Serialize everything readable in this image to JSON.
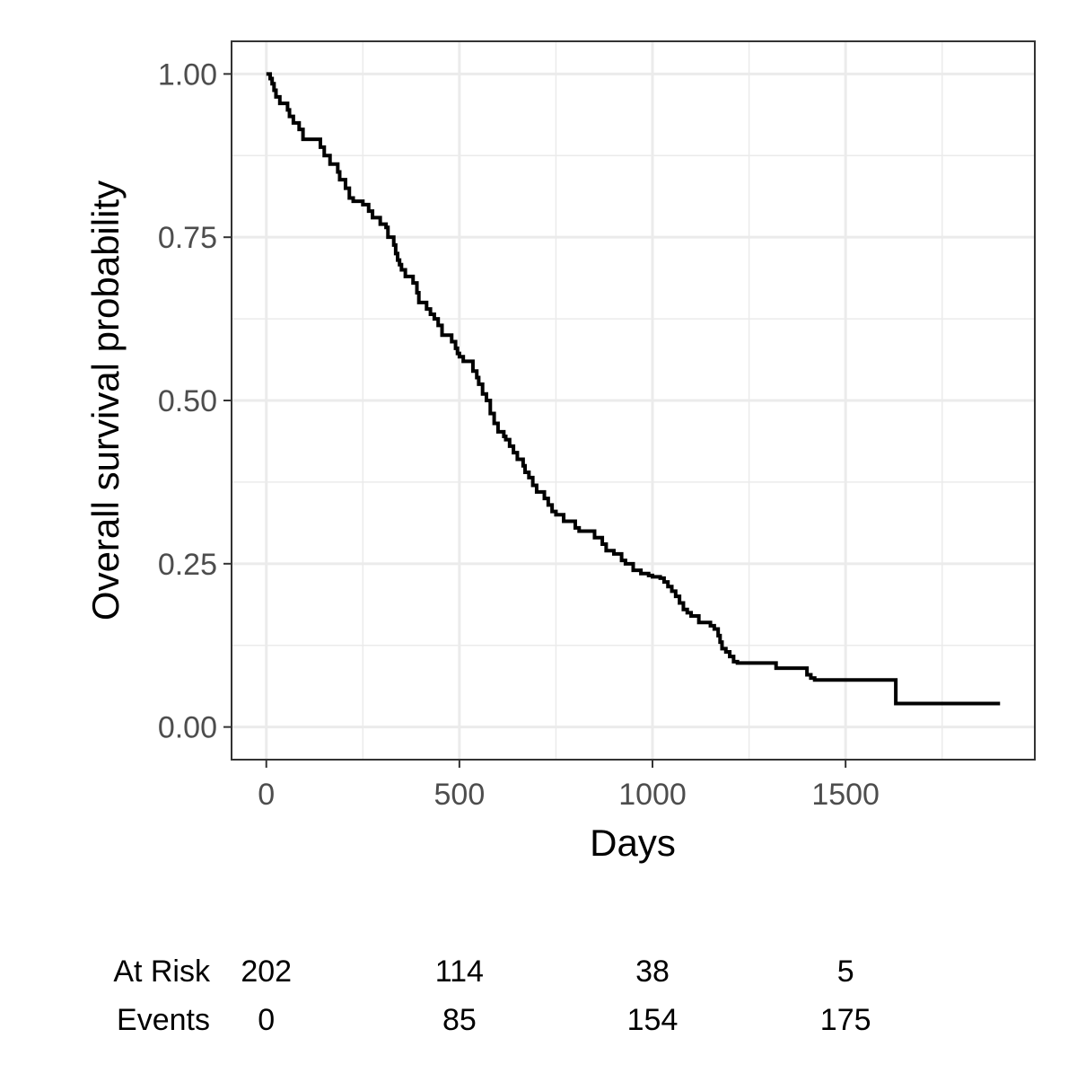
{
  "chart_data": {
    "type": "line",
    "subtype": "kaplan-meier step curve",
    "title": "",
    "xlabel": "Days",
    "ylabel": "Overall survival probability",
    "xlim": [
      -90,
      1990
    ],
    "ylim": [
      -0.05,
      1.05
    ],
    "x_ticks": [
      0,
      500,
      1000,
      1500
    ],
    "x_tick_labels": [
      "0",
      "500",
      "1000",
      "1500"
    ],
    "x_minor_gridlines": [
      250,
      750,
      1250,
      1750
    ],
    "y_ticks": [
      0,
      0.25,
      0.5,
      0.75,
      1
    ],
    "y_tick_labels": [
      "0.00",
      "0.25",
      "0.50",
      "0.75",
      "1.00"
    ],
    "y_minor_gridlines": [
      0.125,
      0.375,
      0.625,
      0.875
    ],
    "grid": true,
    "legend": "none",
    "colors": {
      "line": "#000000",
      "grid": "#ebebeb",
      "panel_border": "#333333",
      "tick_label": "#4d4d4d"
    },
    "series": [
      {
        "x": [
          0,
          10,
          15,
          20,
          25,
          35,
          55,
          60,
          70,
          85,
          95,
          105,
          140,
          150,
          165,
          185,
          190,
          205,
          215,
          225,
          250,
          265,
          275,
          295,
          310,
          315,
          330,
          335,
          340,
          345,
          350,
          360,
          380,
          390,
          395,
          410,
          415,
          425,
          435,
          445,
          455,
          470,
          480,
          490,
          495,
          500,
          510,
          535,
          545,
          550,
          560,
          570,
          580,
          590,
          600,
          615,
          620,
          630,
          640,
          650,
          665,
          670,
          680,
          690,
          700,
          720,
          730,
          740,
          750,
          760,
          770,
          800,
          810,
          830,
          850,
          870,
          880,
          900,
          920,
          930,
          950,
          970,
          990,
          1000,
          1020,
          1030,
          1040,
          1050,
          1060,
          1070,
          1080,
          1090,
          1100,
          1120,
          1150,
          1160,
          1170,
          1175,
          1180,
          1190,
          1200,
          1210,
          1220,
          1240,
          1250,
          1260,
          1270,
          1280,
          1300,
          1320,
          1350,
          1400,
          1410,
          1420,
          1450,
          1500,
          1550,
          1600,
          1625,
          1630,
          1700,
          1800,
          1900
        ],
        "y": [
          1.0,
          0.993,
          0.985,
          0.975,
          0.965,
          0.955,
          0.945,
          0.935,
          0.925,
          0.915,
          0.9,
          0.9,
          0.888,
          0.875,
          0.862,
          0.85,
          0.838,
          0.825,
          0.81,
          0.805,
          0.8,
          0.79,
          0.78,
          0.77,
          0.765,
          0.75,
          0.738,
          0.725,
          0.715,
          0.708,
          0.7,
          0.69,
          0.68,
          0.665,
          0.65,
          0.65,
          0.64,
          0.632,
          0.625,
          0.615,
          0.6,
          0.6,
          0.59,
          0.58,
          0.572,
          0.567,
          0.56,
          0.545,
          0.535,
          0.525,
          0.51,
          0.5,
          0.48,
          0.465,
          0.452,
          0.445,
          0.44,
          0.43,
          0.42,
          0.41,
          0.4,
          0.39,
          0.382,
          0.37,
          0.36,
          0.35,
          0.34,
          0.33,
          0.325,
          0.325,
          0.315,
          0.305,
          0.3,
          0.3,
          0.29,
          0.28,
          0.27,
          0.265,
          0.255,
          0.25,
          0.24,
          0.235,
          0.232,
          0.23,
          0.228,
          0.222,
          0.215,
          0.208,
          0.2,
          0.19,
          0.18,
          0.175,
          0.17,
          0.16,
          0.155,
          0.15,
          0.14,
          0.13,
          0.12,
          0.115,
          0.108,
          0.1,
          0.098,
          0.098,
          0.098,
          0.098,
          0.098,
          0.098,
          0.098,
          0.09,
          0.09,
          0.08,
          0.075,
          0.072,
          0.072,
          0.072,
          0.072,
          0.072,
          0.072,
          0.036,
          0.036,
          0.036,
          0.036
        ]
      }
    ],
    "risk_table": {
      "times": [
        0,
        500,
        1000,
        1500
      ],
      "rows": [
        {
          "label": "At Risk",
          "values": [
            "202",
            "114",
            "38",
            "5"
          ]
        },
        {
          "label": "Events",
          "values": [
            "0",
            "85",
            "154",
            "175"
          ]
        }
      ]
    }
  }
}
